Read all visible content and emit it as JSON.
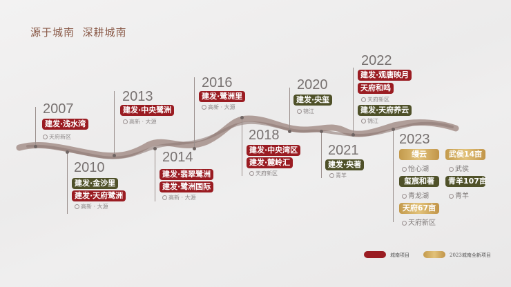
{
  "title": "源于城南  深耕城南",
  "colors": {
    "city_south": "#9a1c22",
    "olive": "#4f5129",
    "new_2023": "#d4b063",
    "river": "#a08a84"
  },
  "milestones": [
    {
      "year": "2007",
      "projects": [
        {
          "name": "建发·浅水湾",
          "color": "red"
        }
      ],
      "locations": [
        "天府新区"
      ]
    },
    {
      "year": "2010",
      "projects": [
        {
          "name": "建发·金沙里",
          "color": "olive"
        },
        {
          "name": "建发·天府鹭洲",
          "color": "red"
        }
      ],
      "locations": [
        "高新 · 大源"
      ]
    },
    {
      "year": "2013",
      "projects": [
        {
          "name": "建发·中央鹭洲",
          "color": "red"
        }
      ],
      "locations": [
        "高新 · 大源"
      ]
    },
    {
      "year": "2014",
      "projects": [
        {
          "name": "建发·翡翠鹭洲",
          "color": "red"
        },
        {
          "name": "建发·鹭洲国际",
          "color": "red"
        }
      ],
      "locations": [
        "高新 · 大源"
      ]
    },
    {
      "year": "2016",
      "projects": [
        {
          "name": "建发·鹭洲里",
          "color": "red"
        }
      ],
      "locations": [
        "高新 · 大源"
      ]
    },
    {
      "year": "2018",
      "projects": [
        {
          "name": "建发·中央湾区",
          "color": "red"
        },
        {
          "name": "建发·麓岭汇",
          "color": "red"
        }
      ],
      "locations": [
        "天府新区"
      ]
    },
    {
      "year": "2020",
      "projects": [
        {
          "name": "建发·央玺",
          "color": "olive"
        }
      ],
      "locations": [
        "锦江"
      ]
    },
    {
      "year": "2021",
      "projects": [
        {
          "name": "建发·央著",
          "color": "olive"
        }
      ],
      "locations": [
        "青羊"
      ]
    },
    {
      "year": "2022",
      "projects": [
        {
          "name": "建发·观唐映月",
          "color": "red"
        },
        {
          "name": "天府和鸣",
          "color": "red"
        },
        {
          "name": "建发·天府养云",
          "color": "olive"
        }
      ],
      "locations": [
        "天府新区",
        "锦江"
      ]
    },
    {
      "year": "2023",
      "projects": [
        {
          "name": "缦云",
          "color": "gold"
        },
        {
          "name": "武侯14亩",
          "color": "gold"
        },
        {
          "name": "玺宸和著",
          "color": "olive"
        },
        {
          "name": "青羊107亩",
          "color": "olive"
        },
        {
          "name": "天府67亩",
          "color": "gold"
        }
      ],
      "locations": [
        "怡心湖",
        "武侯",
        "青龙湖",
        "青羊",
        "天府新区"
      ]
    }
  ],
  "legend": [
    {
      "label": "城南项目",
      "color": "red"
    },
    {
      "label": "2023城南全新项目",
      "color": "gold"
    }
  ]
}
